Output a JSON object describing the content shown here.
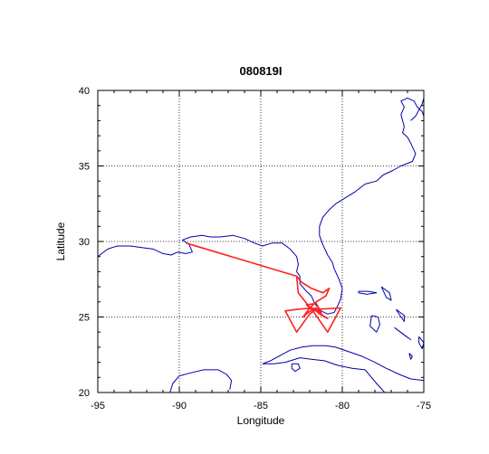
{
  "chart_data": {
    "type": "map-track",
    "title": "080819I",
    "xlabel": "Longitude",
    "ylabel": "Latitude",
    "xlim": [
      -95,
      -75
    ],
    "ylim": [
      20,
      40
    ],
    "x_ticks": [
      -95,
      -90,
      -85,
      -80,
      -75
    ],
    "y_ticks": [
      20,
      25,
      30,
      35,
      40
    ],
    "grid": true,
    "colors": {
      "coastline": "#0000aa",
      "track": "#ff2020",
      "grid": "#000000",
      "axes": "#000000"
    },
    "flight_track": {
      "name": "",
      "points": [
        [
          -89.6,
          29.9
        ],
        [
          -82.8,
          27.7
        ],
        [
          -82.5,
          27.3
        ],
        [
          -81.9,
          26.9
        ],
        [
          -81.2,
          26.6
        ],
        [
          -80.8,
          26.9
        ],
        [
          -81.0,
          26.4
        ],
        [
          -81.6,
          26.0
        ],
        [
          -82.0,
          25.6
        ],
        [
          -82.4,
          25.0
        ],
        [
          -82.1,
          25.3
        ],
        [
          -81.6,
          25.6
        ],
        [
          -81.2,
          25.1
        ],
        [
          -80.9,
          24.9
        ],
        [
          -81.4,
          25.2
        ],
        [
          -81.8,
          25.6
        ],
        [
          -82.8,
          25.5
        ],
        [
          -83.5,
          25.4
        ],
        [
          -82.8,
          24.0
        ],
        [
          -82.0,
          25.2
        ],
        [
          -81.6,
          25.5
        ],
        [
          -80.1,
          25.6
        ],
        [
          -80.9,
          24.0
        ],
        [
          -81.8,
          25.4
        ],
        [
          -82.2,
          25.8
        ],
        [
          -81.6,
          25.9
        ],
        [
          -81.3,
          25.3
        ],
        [
          -81.9,
          25.5
        ],
        [
          -82.7,
          26.6
        ],
        [
          -82.8,
          27.7
        ]
      ]
    },
    "coastlines": [
      {
        "name": "gulf-and-atlantic-coast",
        "points": [
          [
            -95.0,
            29.0
          ],
          [
            -94.4,
            29.5
          ],
          [
            -93.8,
            29.7
          ],
          [
            -93.0,
            29.7
          ],
          [
            -92.3,
            29.6
          ],
          [
            -91.6,
            29.5
          ],
          [
            -91.0,
            29.2
          ],
          [
            -90.5,
            29.1
          ],
          [
            -90.1,
            29.3
          ],
          [
            -89.6,
            29.2
          ],
          [
            -89.2,
            29.3
          ],
          [
            -89.4,
            29.8
          ],
          [
            -89.8,
            30.1
          ],
          [
            -89.3,
            30.3
          ],
          [
            -88.6,
            30.4
          ],
          [
            -88.1,
            30.3
          ],
          [
            -87.5,
            30.3
          ],
          [
            -86.7,
            30.4
          ],
          [
            -86.0,
            30.2
          ],
          [
            -85.4,
            29.9
          ],
          [
            -84.9,
            29.7
          ],
          [
            -84.3,
            29.9
          ],
          [
            -83.7,
            29.9
          ],
          [
            -83.2,
            29.5
          ],
          [
            -82.8,
            29.0
          ],
          [
            -82.7,
            28.5
          ],
          [
            -82.8,
            28.0
          ],
          [
            -82.6,
            27.7
          ],
          [
            -82.6,
            27.2
          ],
          [
            -82.2,
            26.7
          ],
          [
            -81.9,
            26.4
          ],
          [
            -81.7,
            25.9
          ],
          [
            -81.3,
            25.4
          ],
          [
            -80.9,
            25.2
          ],
          [
            -80.5,
            25.3
          ],
          [
            -80.3,
            25.7
          ],
          [
            -80.1,
            26.2
          ],
          [
            -80.0,
            26.9
          ],
          [
            -80.2,
            27.5
          ],
          [
            -80.5,
            28.2
          ],
          [
            -80.6,
            28.6
          ],
          [
            -80.9,
            29.1
          ],
          [
            -81.2,
            29.8
          ],
          [
            -81.4,
            30.4
          ],
          [
            -81.4,
            31.0
          ],
          [
            -81.2,
            31.6
          ],
          [
            -80.8,
            32.1
          ],
          [
            -80.4,
            32.5
          ],
          [
            -79.8,
            32.9
          ],
          [
            -79.2,
            33.3
          ],
          [
            -78.6,
            33.8
          ],
          [
            -77.9,
            34.0
          ],
          [
            -77.5,
            34.4
          ],
          [
            -76.9,
            34.7
          ],
          [
            -76.4,
            35.0
          ],
          [
            -75.7,
            35.3
          ],
          [
            -75.5,
            35.8
          ],
          [
            -75.8,
            36.5
          ],
          [
            -76.0,
            36.9
          ],
          [
            -76.3,
            37.2
          ],
          [
            -76.2,
            37.6
          ],
          [
            -76.3,
            38.0
          ],
          [
            -76.4,
            38.4
          ],
          [
            -76.2,
            38.9
          ],
          [
            -76.4,
            39.3
          ],
          [
            -76.0,
            39.5
          ],
          [
            -75.6,
            39.3
          ],
          [
            -75.4,
            38.9
          ],
          [
            -75.1,
            38.6
          ],
          [
            -75.0,
            38.3
          ]
        ]
      },
      {
        "name": "yucatan-coast",
        "points": [
          [
            -90.6,
            19.9
          ],
          [
            -90.4,
            20.6
          ],
          [
            -90.0,
            21.1
          ],
          [
            -89.3,
            21.3
          ],
          [
            -88.5,
            21.5
          ],
          [
            -87.6,
            21.5
          ],
          [
            -87.1,
            21.2
          ],
          [
            -86.8,
            20.8
          ],
          [
            -86.9,
            20.2
          ]
        ]
      },
      {
        "name": "cuba-coast",
        "points": [
          [
            -84.9,
            21.9
          ],
          [
            -84.4,
            22.1
          ],
          [
            -83.9,
            22.4
          ],
          [
            -83.2,
            22.8
          ],
          [
            -82.5,
            23.0
          ],
          [
            -81.8,
            23.1
          ],
          [
            -81.0,
            23.1
          ],
          [
            -80.4,
            23.0
          ],
          [
            -79.6,
            22.7
          ],
          [
            -78.8,
            22.4
          ],
          [
            -78.0,
            22.0
          ],
          [
            -77.3,
            21.6
          ],
          [
            -76.5,
            21.2
          ],
          [
            -75.8,
            20.9
          ],
          [
            -75.0,
            20.8
          ],
          [
            -75.0,
            20.0
          ],
          [
            -75.8,
            20.0
          ],
          [
            -76.6,
            19.9
          ],
          [
            -77.4,
            20.0
          ],
          [
            -77.9,
            20.6
          ],
          [
            -78.6,
            21.5
          ],
          [
            -79.4,
            21.6
          ],
          [
            -80.3,
            21.8
          ],
          [
            -81.1,
            22.1
          ],
          [
            -81.9,
            22.2
          ],
          [
            -82.6,
            22.3
          ],
          [
            -83.5,
            22.0
          ],
          [
            -84.2,
            21.9
          ],
          [
            -84.9,
            21.9
          ]
        ]
      },
      {
        "name": "isle-of-youth",
        "points": [
          [
            -83.1,
            21.9
          ],
          [
            -82.7,
            21.9
          ],
          [
            -82.6,
            21.6
          ],
          [
            -82.9,
            21.4
          ],
          [
            -83.1,
            21.6
          ],
          [
            -83.1,
            21.9
          ]
        ]
      },
      {
        "name": "andros",
        "points": [
          [
            -78.2,
            25.1
          ],
          [
            -77.8,
            25.0
          ],
          [
            -77.7,
            24.5
          ],
          [
            -77.9,
            24.0
          ],
          [
            -78.3,
            24.4
          ],
          [
            -78.2,
            25.1
          ]
        ]
      },
      {
        "name": "grand-bahama",
        "points": [
          [
            -79.0,
            26.7
          ],
          [
            -78.4,
            26.7
          ],
          [
            -77.9,
            26.6
          ],
          [
            -78.5,
            26.5
          ],
          [
            -79.0,
            26.6
          ],
          [
            -79.0,
            26.7
          ]
        ]
      },
      {
        "name": "abaco",
        "points": [
          [
            -77.6,
            27.0
          ],
          [
            -77.1,
            26.6
          ],
          [
            -77.0,
            26.1
          ],
          [
            -77.3,
            26.3
          ],
          [
            -77.6,
            27.0
          ]
        ]
      },
      {
        "name": "eleuthera",
        "points": [
          [
            -76.7,
            25.5
          ],
          [
            -76.2,
            25.1
          ],
          [
            -76.2,
            24.7
          ],
          [
            -76.4,
            25.0
          ],
          [
            -76.7,
            25.5
          ]
        ]
      },
      {
        "name": "exuma",
        "points": [
          [
            -76.8,
            24.3
          ],
          [
            -76.3,
            23.9
          ],
          [
            -75.8,
            23.5
          ],
          [
            -76.2,
            23.8
          ],
          [
            -76.8,
            24.3
          ]
        ]
      },
      {
        "name": "long-island-bahamas",
        "points": [
          [
            -75.3,
            23.7
          ],
          [
            -75.0,
            23.3
          ],
          [
            -75.1,
            22.9
          ],
          [
            -75.3,
            23.3
          ],
          [
            -75.3,
            23.7
          ]
        ]
      },
      {
        "name": "ragged-island",
        "points": [
          [
            -75.9,
            22.6
          ],
          [
            -75.7,
            22.4
          ],
          [
            -75.8,
            22.2
          ],
          [
            -75.9,
            22.6
          ]
        ]
      },
      {
        "name": "delmarva-coast",
        "points": [
          [
            -75.8,
            38.0
          ],
          [
            -75.5,
            38.3
          ],
          [
            -75.3,
            38.7
          ],
          [
            -75.1,
            39.1
          ],
          [
            -75.0,
            39.5
          ],
          [
            -75.0,
            39.9
          ]
        ]
      }
    ]
  }
}
